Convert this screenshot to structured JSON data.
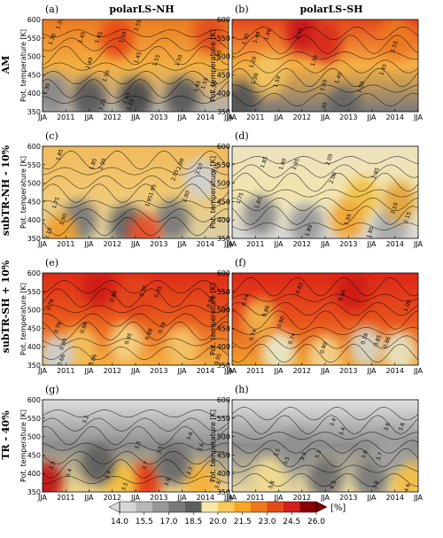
{
  "figure": {
    "columns": [
      "polarLS-NH",
      "polarLS-SH"
    ],
    "rows": [
      "AM",
      "subTR-NH - 10%",
      "subTR-SH + 10%",
      "TR - 40%"
    ],
    "panel_letters": [
      "(a)",
      "(b)",
      "(c)",
      "(d)",
      "(e)",
      "(f)",
      "(g)",
      "(h)"
    ],
    "ylabel": "Pot. temperature [K]",
    "yticks": [
      "350",
      "400",
      "450",
      "500",
      "550",
      "600"
    ],
    "xticks": [
      "JJA",
      "2011",
      "JJA",
      "2012",
      "JJA",
      "2013",
      "JJA",
      "2014",
      "JJA"
    ],
    "colorbar": {
      "ticks": [
        "14.0",
        "15.5",
        "17.0",
        "18.5",
        "20.0",
        "21.5",
        "23.0",
        "24.5",
        "26.0"
      ],
      "unit": "[%]",
      "colors": [
        "#d6d6d6",
        "#b8b8b8",
        "#989898",
        "#7a7a7a",
        "#5e5e5e",
        "#f5e7a8",
        "#f7c95a",
        "#f5a623",
        "#ee7a1c",
        "#e64a19",
        "#d21f1f",
        "#8b0000"
      ]
    },
    "panels": [
      {
        "id": "a",
        "contour_labels": [
          "1.30",
          "1.35",
          "1.45",
          "1.45",
          "1.50",
          "1.55",
          "1.40",
          "1.45",
          "1.55",
          "1.50",
          "1.30",
          "1.25",
          "1.55",
          "1.50",
          "1.20",
          "1.55",
          "1.45",
          "1.50",
          "1.55"
        ]
      },
      {
        "id": "b",
        "contour_labels": [
          "1.30",
          "1.20",
          "1.40",
          "1.40",
          "1.55",
          "1.50",
          "1.55",
          "1.30",
          "1.40",
          "1.50",
          "1.45",
          "1.50",
          "1.55",
          "1.30"
        ]
      },
      {
        "id": "c",
        "contour_labels": [
          "1.85",
          "1.85",
          "1.90",
          "1.95",
          "1.95",
          "2.05",
          "2.10",
          "2.10",
          "1.75",
          "1.90",
          "2.00",
          "2.00",
          "2.10"
        ]
      },
      {
        "id": "d",
        "contour_labels": [
          "1.85",
          "1.90",
          "1.95",
          "1.75",
          "1.85",
          "1.80",
          "2.00",
          "2.05",
          "1.95",
          "2.10",
          "2.15",
          "1.85",
          "1.95"
        ]
      },
      {
        "id": "e",
        "contour_labels": [
          "0.78",
          "0.78",
          "0.80",
          "0.86",
          "0.88",
          "0.95",
          "0.95",
          "0.88",
          "0.95",
          "0.98",
          "0.66",
          "0.86",
          "0.78",
          "0.95"
        ]
      },
      {
        "id": "f",
        "contour_labels": [
          "0.82",
          "0.74",
          "0.74",
          "0.86",
          "0.90",
          "0.86",
          "0.74",
          "0.90",
          "0.85",
          "0.86",
          "0.78",
          "1.00"
        ]
      },
      {
        "id": "g",
        "contour_labels": [
          "3.2",
          "3.3",
          "3.5",
          "3.5",
          "3.6",
          "3.7",
          "3.6",
          "3.4",
          "3.4",
          "3.7",
          "3.5",
          "3.9",
          "3.8"
        ]
      },
      {
        "id": "h",
        "contour_labels": [
          "3.4",
          "3.4",
          "3.5",
          "3.6",
          "3.6",
          "3.5",
          "3.3",
          "3.3",
          "3.6",
          "3.7",
          "3.8",
          "4.3",
          "3.8",
          "4.6"
        ]
      }
    ]
  },
  "chart_data": [
    {
      "type": "heatmap",
      "title": "polarLS-NH",
      "row": "AM",
      "panel": "(a)",
      "ylabel": "Pot. temperature [K]",
      "ylim": [
        350,
        600
      ],
      "x_labels": [
        "JJA",
        "2011",
        "JJA",
        "2012",
        "JJA",
        "2013",
        "JJA",
        "2014",
        "JJA"
      ],
      "note_values": "fraction contours shown, color 14.0-26.0 %"
    },
    {
      "type": "heatmap",
      "title": "polarLS-SH",
      "row": "AM",
      "panel": "(b)",
      "ylim": [
        350,
        600
      ]
    },
    {
      "type": "heatmap",
      "row": "subTR-NH - 10%",
      "panel": "(c)",
      "ylim": [
        350,
        600
      ]
    },
    {
      "type": "heatmap",
      "row": "subTR-NH - 10%",
      "panel": "(d)",
      "ylim": [
        350,
        600
      ]
    },
    {
      "type": "heatmap",
      "row": "subTR-SH + 10%",
      "panel": "(e)",
      "ylim": [
        350,
        600
      ]
    },
    {
      "type": "heatmap",
      "row": "subTR-SH + 10%",
      "panel": "(f)",
      "ylim": [
        350,
        600
      ]
    },
    {
      "type": "heatmap",
      "row": "TR - 40%",
      "panel": "(g)",
      "ylim": [
        350,
        600
      ]
    },
    {
      "type": "heatmap",
      "row": "TR - 40%",
      "panel": "(h)",
      "ylim": [
        350,
        600
      ]
    }
  ]
}
